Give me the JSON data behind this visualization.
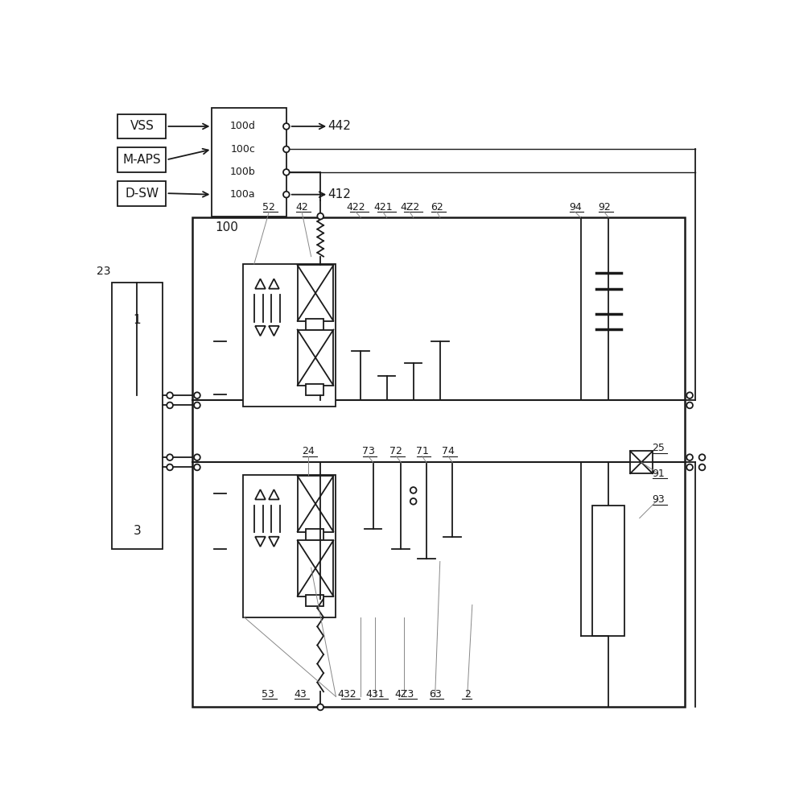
{
  "bg": "#ffffff",
  "lc": "#1a1a1a",
  "lw_main": 1.3,
  "fig_w": 9.79,
  "fig_h": 10.0,
  "dpi": 100,
  "input_labels": [
    "VSS",
    "M-APS",
    "D-SW"
  ],
  "port_labels": [
    "100d",
    "100c",
    "100b",
    "100a"
  ],
  "label_100": "100",
  "label_442": "442",
  "label_412": "412",
  "top_labels": [
    "52",
    "42",
    "422",
    "421",
    "4Z2",
    "62",
    "94",
    "92"
  ],
  "bot_labels": [
    "53",
    "43",
    "432",
    "431",
    "4Z3",
    "63",
    "2"
  ],
  "mid_labels_left": [
    "24",
    "73",
    "72",
    "71",
    "74"
  ],
  "mid_labels_right": [
    "25",
    "91",
    "93"
  ]
}
